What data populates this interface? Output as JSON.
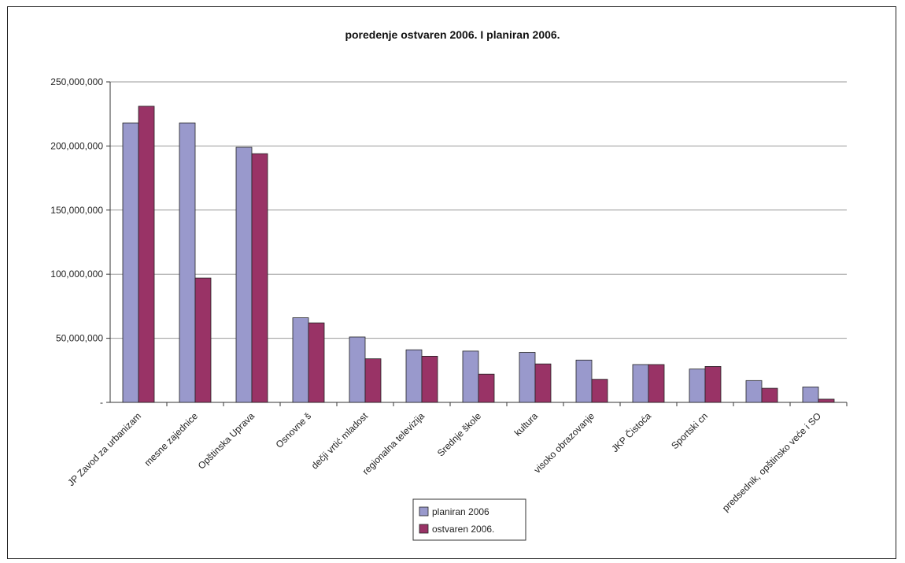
{
  "chart_data": {
    "type": "bar",
    "title": "poredenje ostvaren 2006. I planiran 2006.",
    "xlabel": "",
    "ylabel": "",
    "ylim": [
      0,
      250000000
    ],
    "yticks": [
      "-",
      "50,000,000",
      "100,000,000",
      "150,000,000",
      "200,000,000",
      "250,000,000"
    ],
    "grid": true,
    "legend_position": "bottom",
    "categories": [
      "JP Zavod za urbanizam",
      "mesne zajednice",
      "Opštinska Uprava",
      "Osnovne š",
      "dečji vrtić mladost",
      "regionalna televizija",
      "Srednje škole",
      "kultura",
      "visoko obrazovanje",
      "JKP Čistoća",
      "Sportski cn",
      "",
      "predsednik, opštinsko veće i SO"
    ],
    "series": [
      {
        "name": "planiran 2006",
        "color": "#9999cc",
        "values": [
          218000000,
          218000000,
          199000000,
          66000000,
          51000000,
          41000000,
          40000000,
          39000000,
          33000000,
          29500000,
          26000000,
          17000000,
          12000000
        ]
      },
      {
        "name": "ostvaren 2006.",
        "color": "#993366",
        "values": [
          231000000,
          97000000,
          194000000,
          62000000,
          34000000,
          36000000,
          22000000,
          30000000,
          18000000,
          29500000,
          28000000,
          11000000,
          2500000
        ]
      }
    ]
  }
}
